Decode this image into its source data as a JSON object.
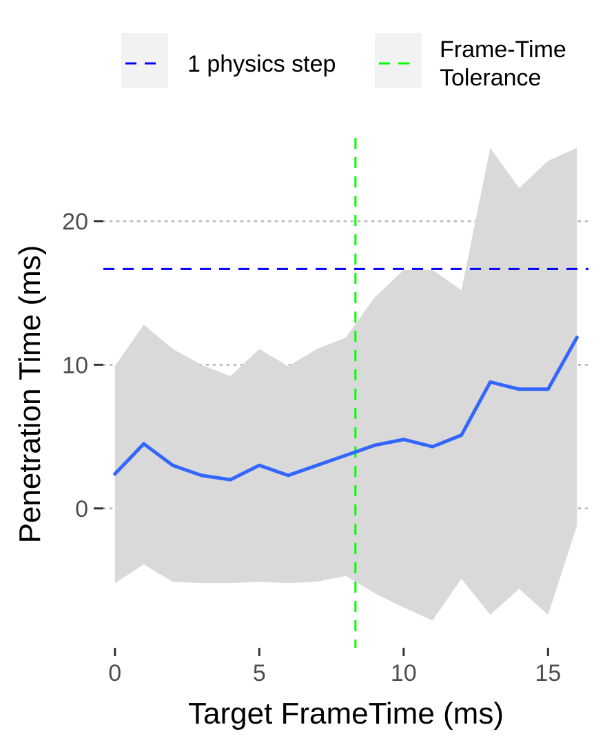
{
  "chart_data": {
    "type": "line",
    "title": "",
    "xlabel": "Target FrameTime (ms)",
    "ylabel": "Penetration Time (ms)",
    "xlim": [
      -0.4,
      16.4
    ],
    "ylim": [
      -9.7,
      25.8
    ],
    "xticks": [
      0,
      5,
      10,
      15
    ],
    "yticks": [
      0,
      10,
      20
    ],
    "grid": {
      "major_y": true,
      "style": "dotted"
    },
    "legend_position": "top",
    "series": [
      {
        "kind": "line",
        "color": "#3366ff",
        "x": [
          0,
          1,
          2,
          3,
          4,
          5,
          6,
          7,
          8,
          9,
          10,
          11,
          12,
          13,
          14,
          15,
          16
        ],
        "y": [
          2.4,
          4.5,
          3.0,
          2.3,
          2.0,
          3.0,
          2.3,
          3.0,
          3.7,
          4.4,
          4.8,
          4.3,
          5.1,
          8.8,
          8.3,
          8.3,
          11.9
        ]
      },
      {
        "kind": "ribbon",
        "color": "#d9d9d9",
        "x": [
          0,
          1,
          2,
          3,
          4,
          5,
          6,
          7,
          8,
          9,
          10,
          11,
          12,
          13,
          14,
          15,
          16
        ],
        "lower": [
          -5.2,
          -3.9,
          -5.1,
          -5.2,
          -5.2,
          -5.1,
          -5.2,
          -5.1,
          -4.7,
          -5.9,
          -6.9,
          -7.8,
          -4.9,
          -7.4,
          -5.6,
          -7.4,
          -1.2
        ],
        "upper": [
          9.9,
          12.8,
          11.1,
          10.0,
          9.2,
          11.1,
          9.9,
          11.1,
          11.9,
          14.7,
          16.6,
          16.6,
          15.2,
          25.1,
          22.3,
          24.2,
          25.1
        ]
      }
    ],
    "reference_lines": [
      {
        "orientation": "horizontal",
        "value": 16.67,
        "color": "#0000ff",
        "style": "dashed",
        "legend": "1 physics step"
      },
      {
        "orientation": "vertical",
        "value": 8.33,
        "color": "#00ff00",
        "style": "dashed",
        "legend": "Frame-Time Tolerance"
      }
    ],
    "legend": [
      {
        "lines": [
          "1 physics step"
        ],
        "color": "#0000ff"
      },
      {
        "lines": [
          "Frame-Time",
          "Tolerance"
        ],
        "color": "#00ff00"
      }
    ]
  }
}
